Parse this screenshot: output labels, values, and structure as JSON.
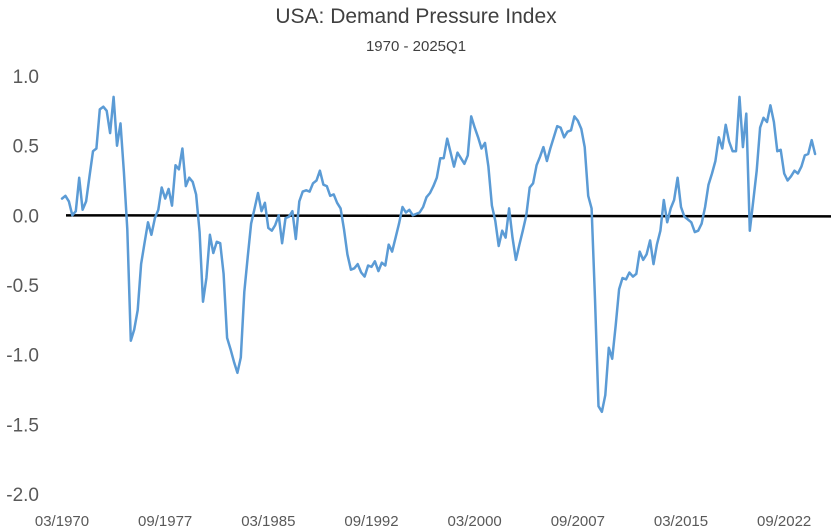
{
  "chart_data": {
    "type": "line",
    "title": "USA: Demand Pressure Index",
    "subtitle": "1970 - 2025Q1",
    "xlabel": "",
    "ylabel": "",
    "ylim": [
      -2.0,
      1.0
    ],
    "yticks": [
      "1.0",
      "0.5",
      "0.0",
      "-0.5",
      "-1.0",
      "-1.5",
      "-2.0"
    ],
    "yvalues": [
      1.0,
      0.5,
      0.0,
      -0.5,
      -1.0,
      -1.5,
      -2.0
    ],
    "xticks": [
      "03/1970",
      "09/1977",
      "03/1985",
      "09/1992",
      "03/2000",
      "09/2007",
      "03/2015",
      "09/2022"
    ],
    "xtick_years": [
      1970.0,
      1977.5,
      1985.0,
      1992.5,
      2000.0,
      2007.5,
      2015.0,
      2022.5
    ],
    "xlim": [
      1970.0,
      2025.25
    ],
    "grid": false,
    "legend": "none",
    "line_color": "#5b9bd5",
    "zero_line_color": "#000000",
    "series": [
      {
        "values": [
          [
            1970.0,
            0.12
          ],
          [
            1970.25,
            0.14
          ],
          [
            1970.5,
            0.1
          ],
          [
            1970.75,
            0.0
          ],
          [
            1971.0,
            0.03
          ],
          [
            1971.25,
            0.27
          ],
          [
            1971.5,
            0.04
          ],
          [
            1971.75,
            0.1
          ],
          [
            1972.0,
            0.28
          ],
          [
            1972.25,
            0.46
          ],
          [
            1972.5,
            0.48
          ],
          [
            1972.75,
            0.76
          ],
          [
            1973.0,
            0.78
          ],
          [
            1973.25,
            0.75
          ],
          [
            1973.5,
            0.59
          ],
          [
            1973.75,
            0.85
          ],
          [
            1974.0,
            0.5
          ],
          [
            1974.25,
            0.66
          ],
          [
            1974.5,
            0.31
          ],
          [
            1974.75,
            -0.1
          ],
          [
            1975.0,
            -0.9
          ],
          [
            1975.25,
            -0.82
          ],
          [
            1975.5,
            -0.68
          ],
          [
            1975.75,
            -0.35
          ],
          [
            1976.0,
            -0.2
          ],
          [
            1976.25,
            -0.05
          ],
          [
            1976.5,
            -0.14
          ],
          [
            1976.75,
            -0.02
          ],
          [
            1977.0,
            0.04
          ],
          [
            1977.25,
            0.2
          ],
          [
            1977.5,
            0.12
          ],
          [
            1977.75,
            0.19
          ],
          [
            1978.0,
            0.07
          ],
          [
            1978.25,
            0.36
          ],
          [
            1978.5,
            0.33
          ],
          [
            1978.75,
            0.48
          ],
          [
            1979.0,
            0.21
          ],
          [
            1979.25,
            0.27
          ],
          [
            1979.5,
            0.24
          ],
          [
            1979.75,
            0.15
          ],
          [
            1980.0,
            -0.12
          ],
          [
            1980.25,
            -0.62
          ],
          [
            1980.5,
            -0.45
          ],
          [
            1980.75,
            -0.14
          ],
          [
            1981.0,
            -0.27
          ],
          [
            1981.25,
            -0.19
          ],
          [
            1981.5,
            -0.2
          ],
          [
            1981.75,
            -0.42
          ],
          [
            1982.0,
            -0.88
          ],
          [
            1982.25,
            -0.96
          ],
          [
            1982.5,
            -1.05
          ],
          [
            1982.75,
            -1.13
          ],
          [
            1983.0,
            -1.02
          ],
          [
            1983.25,
            -0.55
          ],
          [
            1983.5,
            -0.3
          ],
          [
            1983.75,
            -0.06
          ],
          [
            1984.0,
            0.05
          ],
          [
            1984.25,
            0.16
          ],
          [
            1984.5,
            0.03
          ],
          [
            1984.75,
            0.09
          ],
          [
            1985.0,
            -0.09
          ],
          [
            1985.25,
            -0.11
          ],
          [
            1985.5,
            -0.07
          ],
          [
            1985.75,
            0.0
          ],
          [
            1986.0,
            -0.2
          ],
          [
            1986.25,
            -0.02
          ],
          [
            1986.5,
            -0.01
          ],
          [
            1986.75,
            0.03
          ],
          [
            1987.0,
            -0.17
          ],
          [
            1987.25,
            0.1
          ],
          [
            1987.5,
            0.17
          ],
          [
            1987.75,
            0.18
          ],
          [
            1988.0,
            0.17
          ],
          [
            1988.25,
            0.23
          ],
          [
            1988.5,
            0.25
          ],
          [
            1988.75,
            0.32
          ],
          [
            1989.0,
            0.22
          ],
          [
            1989.25,
            0.21
          ],
          [
            1989.5,
            0.14
          ],
          [
            1989.75,
            0.15
          ],
          [
            1990.0,
            0.09
          ],
          [
            1990.25,
            0.05
          ],
          [
            1990.5,
            -0.1
          ],
          [
            1990.75,
            -0.28
          ],
          [
            1991.0,
            -0.39
          ],
          [
            1991.25,
            -0.38
          ],
          [
            1991.5,
            -0.35
          ],
          [
            1991.75,
            -0.41
          ],
          [
            1992.0,
            -0.44
          ],
          [
            1992.25,
            -0.36
          ],
          [
            1992.5,
            -0.37
          ],
          [
            1992.75,
            -0.33
          ],
          [
            1993.0,
            -0.4
          ],
          [
            1993.25,
            -0.34
          ],
          [
            1993.5,
            -0.36
          ],
          [
            1993.75,
            -0.21
          ],
          [
            1994.0,
            -0.26
          ],
          [
            1994.25,
            -0.16
          ],
          [
            1994.5,
            -0.06
          ],
          [
            1994.75,
            0.06
          ],
          [
            1995.0,
            0.02
          ],
          [
            1995.25,
            0.04
          ],
          [
            1995.5,
            0.0
          ],
          [
            1995.75,
            0.01
          ],
          [
            1996.0,
            0.02
          ],
          [
            1996.25,
            0.06
          ],
          [
            1996.5,
            0.13
          ],
          [
            1996.75,
            0.16
          ],
          [
            1997.0,
            0.21
          ],
          [
            1997.25,
            0.27
          ],
          [
            1997.5,
            0.41
          ],
          [
            1997.75,
            0.41
          ],
          [
            1998.0,
            0.55
          ],
          [
            1998.25,
            0.45
          ],
          [
            1998.5,
            0.35
          ],
          [
            1998.75,
            0.45
          ],
          [
            1999.0,
            0.41
          ],
          [
            1999.25,
            0.37
          ],
          [
            1999.5,
            0.43
          ],
          [
            1999.75,
            0.71
          ],
          [
            2000.0,
            0.63
          ],
          [
            2000.25,
            0.56
          ],
          [
            2000.5,
            0.48
          ],
          [
            2000.75,
            0.52
          ],
          [
            2001.0,
            0.35
          ],
          [
            2001.25,
            0.07
          ],
          [
            2001.5,
            -0.04
          ],
          [
            2001.75,
            -0.22
          ],
          [
            2002.0,
            -0.11
          ],
          [
            2002.25,
            -0.16
          ],
          [
            2002.5,
            0.05
          ],
          [
            2002.75,
            -0.16
          ],
          [
            2003.0,
            -0.32
          ],
          [
            2003.25,
            -0.21
          ],
          [
            2003.5,
            -0.11
          ],
          [
            2003.75,
            0.0
          ],
          [
            2004.0,
            0.2
          ],
          [
            2004.25,
            0.23
          ],
          [
            2004.5,
            0.36
          ],
          [
            2004.75,
            0.42
          ],
          [
            2005.0,
            0.49
          ],
          [
            2005.25,
            0.39
          ],
          [
            2005.5,
            0.48
          ],
          [
            2005.75,
            0.56
          ],
          [
            2006.0,
            0.64
          ],
          [
            2006.25,
            0.63
          ],
          [
            2006.5,
            0.56
          ],
          [
            2006.75,
            0.6
          ],
          [
            2007.0,
            0.61
          ],
          [
            2007.25,
            0.71
          ],
          [
            2007.5,
            0.68
          ],
          [
            2007.75,
            0.62
          ],
          [
            2008.0,
            0.49
          ],
          [
            2008.25,
            0.14
          ],
          [
            2008.5,
            0.05
          ],
          [
            2008.75,
            -0.6
          ],
          [
            2009.0,
            -1.37
          ],
          [
            2009.25,
            -1.41
          ],
          [
            2009.5,
            -1.29
          ],
          [
            2009.75,
            -0.95
          ],
          [
            2010.0,
            -1.03
          ],
          [
            2010.25,
            -0.79
          ],
          [
            2010.5,
            -0.53
          ],
          [
            2010.75,
            -0.45
          ],
          [
            2011.0,
            -0.46
          ],
          [
            2011.25,
            -0.41
          ],
          [
            2011.5,
            -0.44
          ],
          [
            2011.75,
            -0.42
          ],
          [
            2012.0,
            -0.26
          ],
          [
            2012.25,
            -0.32
          ],
          [
            2012.5,
            -0.28
          ],
          [
            2012.75,
            -0.18
          ],
          [
            2013.0,
            -0.35
          ],
          [
            2013.25,
            -0.21
          ],
          [
            2013.5,
            -0.11
          ],
          [
            2013.75,
            0.11
          ],
          [
            2014.0,
            -0.05
          ],
          [
            2014.25,
            0.05
          ],
          [
            2014.5,
            0.11
          ],
          [
            2014.75,
            0.27
          ],
          [
            2015.0,
            0.06
          ],
          [
            2015.25,
            -0.01
          ],
          [
            2015.5,
            -0.03
          ],
          [
            2015.75,
            -0.05
          ],
          [
            2016.0,
            -0.12
          ],
          [
            2016.25,
            -0.11
          ],
          [
            2016.5,
            -0.06
          ],
          [
            2016.75,
            0.06
          ],
          [
            2017.0,
            0.22
          ],
          [
            2017.25,
            0.3
          ],
          [
            2017.5,
            0.39
          ],
          [
            2017.75,
            0.56
          ],
          [
            2018.0,
            0.48
          ],
          [
            2018.25,
            0.65
          ],
          [
            2018.5,
            0.53
          ],
          [
            2018.75,
            0.46
          ],
          [
            2019.0,
            0.46
          ],
          [
            2019.25,
            0.85
          ],
          [
            2019.5,
            0.49
          ],
          [
            2019.75,
            0.73
          ],
          [
            2020.0,
            -0.11
          ],
          [
            2020.25,
            0.1
          ],
          [
            2020.5,
            0.32
          ],
          [
            2020.75,
            0.63
          ],
          [
            2021.0,
            0.7
          ],
          [
            2021.25,
            0.67
          ],
          [
            2021.5,
            0.79
          ],
          [
            2021.75,
            0.67
          ],
          [
            2022.0,
            0.46
          ],
          [
            2022.25,
            0.47
          ],
          [
            2022.5,
            0.3
          ],
          [
            2022.75,
            0.25
          ],
          [
            2023.0,
            0.28
          ],
          [
            2023.25,
            0.32
          ],
          [
            2023.5,
            0.3
          ],
          [
            2023.75,
            0.35
          ],
          [
            2024.0,
            0.43
          ],
          [
            2024.25,
            0.44
          ],
          [
            2024.5,
            0.54
          ],
          [
            2024.75,
            0.44
          ]
        ]
      }
    ]
  }
}
